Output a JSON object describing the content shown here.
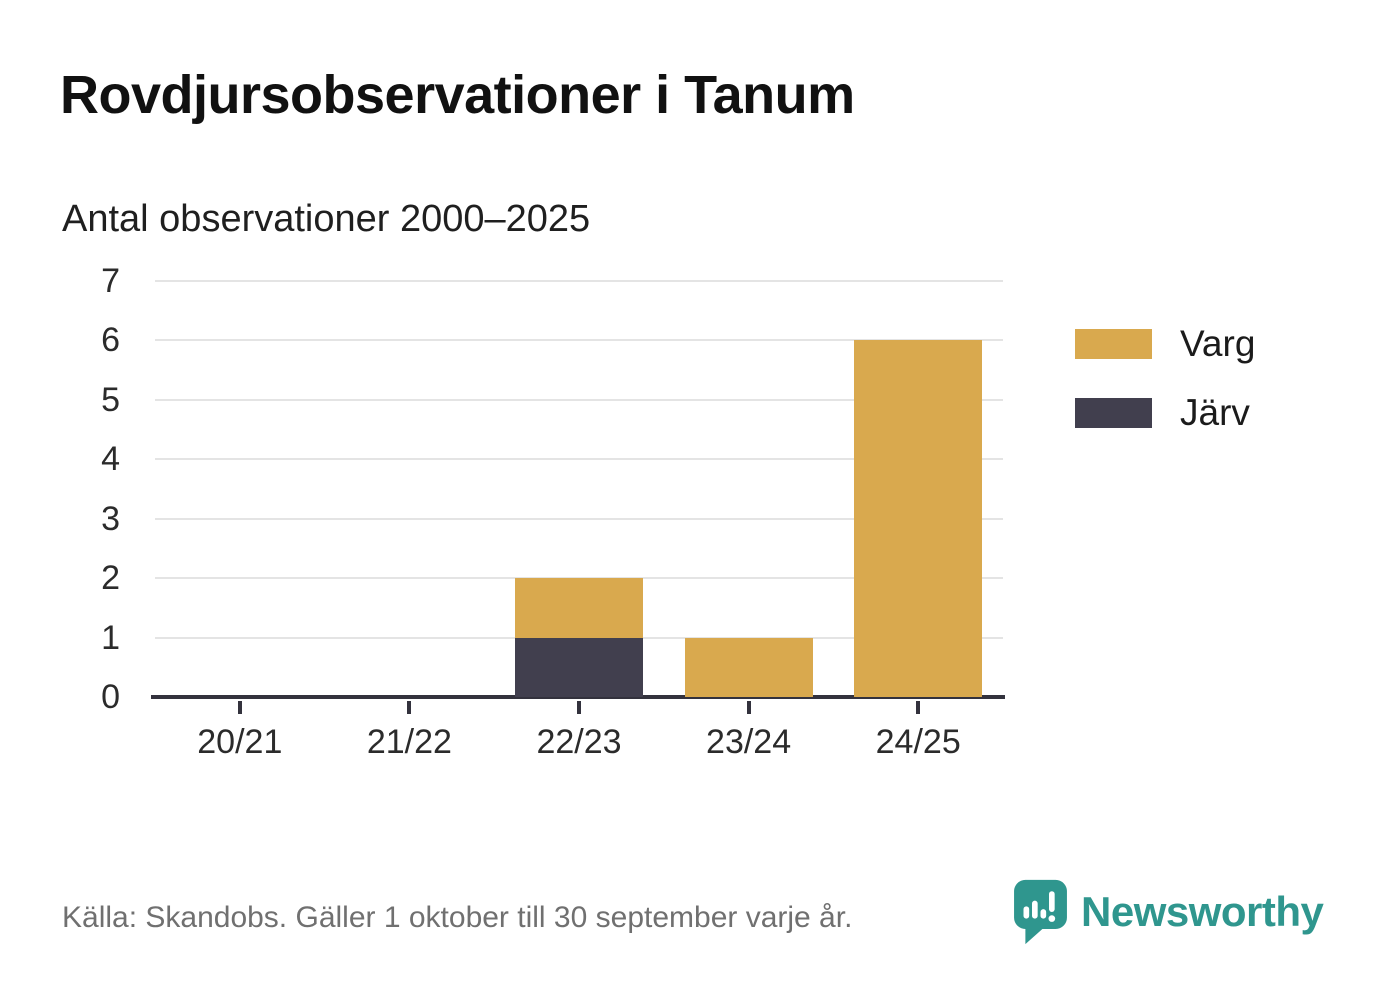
{
  "title": "Rovdjursobservationer i Tanum",
  "subtitle": "Antal observationer 2000–2025",
  "chart_data": {
    "type": "bar",
    "stacked": true,
    "title": "Antal observationer 2000–2025",
    "categories": [
      "20/21",
      "21/22",
      "22/23",
      "23/24",
      "24/25"
    ],
    "series": [
      {
        "name": "Varg",
        "color": "#d9a94e",
        "values": [
          0,
          0,
          1,
          1,
          6
        ]
      },
      {
        "name": "Järv",
        "color": "#413f4e",
        "values": [
          0,
          0,
          1,
          0,
          0
        ]
      }
    ],
    "stack_bottom_to_top": [
      "Järv",
      "Varg"
    ],
    "ylim": [
      0,
      7
    ],
    "yticks": [
      0,
      1,
      2,
      3,
      4,
      5,
      6,
      7
    ],
    "grid": "horizontal",
    "legend_position": "right"
  },
  "legend": {
    "items": [
      {
        "label": "Varg"
      },
      {
        "label": "Järv"
      }
    ]
  },
  "footer": {
    "source": "Källa: Skandobs. Gäller 1 oktober till 30 september varje år.",
    "brand": "Newsworthy"
  },
  "colors": {
    "varg": "#d9a94e",
    "jarv": "#413f4e",
    "brand_teal": "#2f968e",
    "grid": "#e4e4e4",
    "axis": "#33323d",
    "source_text": "#707070"
  }
}
